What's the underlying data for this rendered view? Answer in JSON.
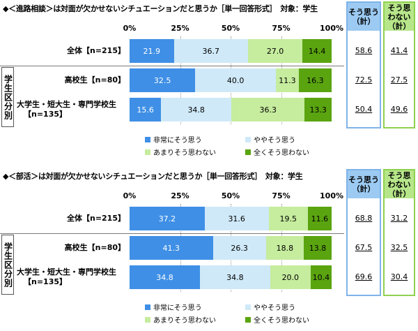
{
  "colors": {
    "very": "#3f8fe6",
    "somewhat": "#cfe9f8",
    "notmuch": "#c6ec9e",
    "notatall": "#5aa410",
    "agree_border": "#7fb3e8",
    "agree_head": "#9ccaf2",
    "disagree_border": "#8fd14f",
    "disagree_head": "#b7e68a"
  },
  "ticks": [
    "0%",
    "25%",
    "50%",
    "75%",
    "100%"
  ],
  "group_label": "学生区分別",
  "legend": [
    "非常にそう思う",
    "ややそう思う",
    "あまりそう思わない",
    "全くそう思わない"
  ],
  "chart_data": [
    {
      "type": "bar",
      "stacked": true,
      "orientation": "horizontal",
      "title": "◆＜進路相談＞は対面が欠かせないシチュエーションだと思うか［単一回答形式］　対象：学生",
      "xlim": [
        0,
        100
      ],
      "categories": [
        "全体【n=215】",
        "高校生【n=80】",
        "大学生・短大生・専門学校生【n=135】"
      ],
      "series": [
        {
          "name": "非常にそう思う",
          "values": [
            21.9,
            32.5,
            15.6
          ]
        },
        {
          "name": "ややそう思う",
          "values": [
            36.7,
            40.0,
            34.8
          ]
        },
        {
          "name": "あまりそう思わない",
          "values": [
            27.0,
            11.3,
            36.3
          ]
        },
        {
          "name": "全くそう思わない",
          "values": [
            14.4,
            16.3,
            13.3
          ]
        }
      ],
      "summary": {
        "agree_label": "そう思う（計）",
        "disagree_label": "そう思わない（計）",
        "agree": [
          58.6,
          72.5,
          50.4
        ],
        "disagree": [
          41.4,
          27.5,
          49.6
        ]
      }
    },
    {
      "type": "bar",
      "stacked": true,
      "orientation": "horizontal",
      "title": "◆＜部活＞は対面が欠かせないシチュエーションだと思うか［単一回答形式］　対象：学生",
      "xlim": [
        0,
        100
      ],
      "categories": [
        "全体【n=215】",
        "高校生【n=80】",
        "大学生・短大生・専門学校生【n=135】"
      ],
      "series": [
        {
          "name": "非常にそう思う",
          "values": [
            37.2,
            41.3,
            34.8
          ]
        },
        {
          "name": "ややそう思う",
          "values": [
            31.6,
            26.3,
            34.8
          ]
        },
        {
          "name": "あまりそう思わない",
          "values": [
            19.5,
            18.8,
            20.0
          ]
        },
        {
          "name": "全くそう思わない",
          "values": [
            11.6,
            13.8,
            10.4
          ]
        }
      ],
      "summary": {
        "agree_label": "そう思う（計）",
        "disagree_label": "そう思わない（計）",
        "agree": [
          68.8,
          67.5,
          69.6
        ],
        "disagree": [
          31.2,
          32.5,
          30.4
        ]
      }
    }
  ]
}
